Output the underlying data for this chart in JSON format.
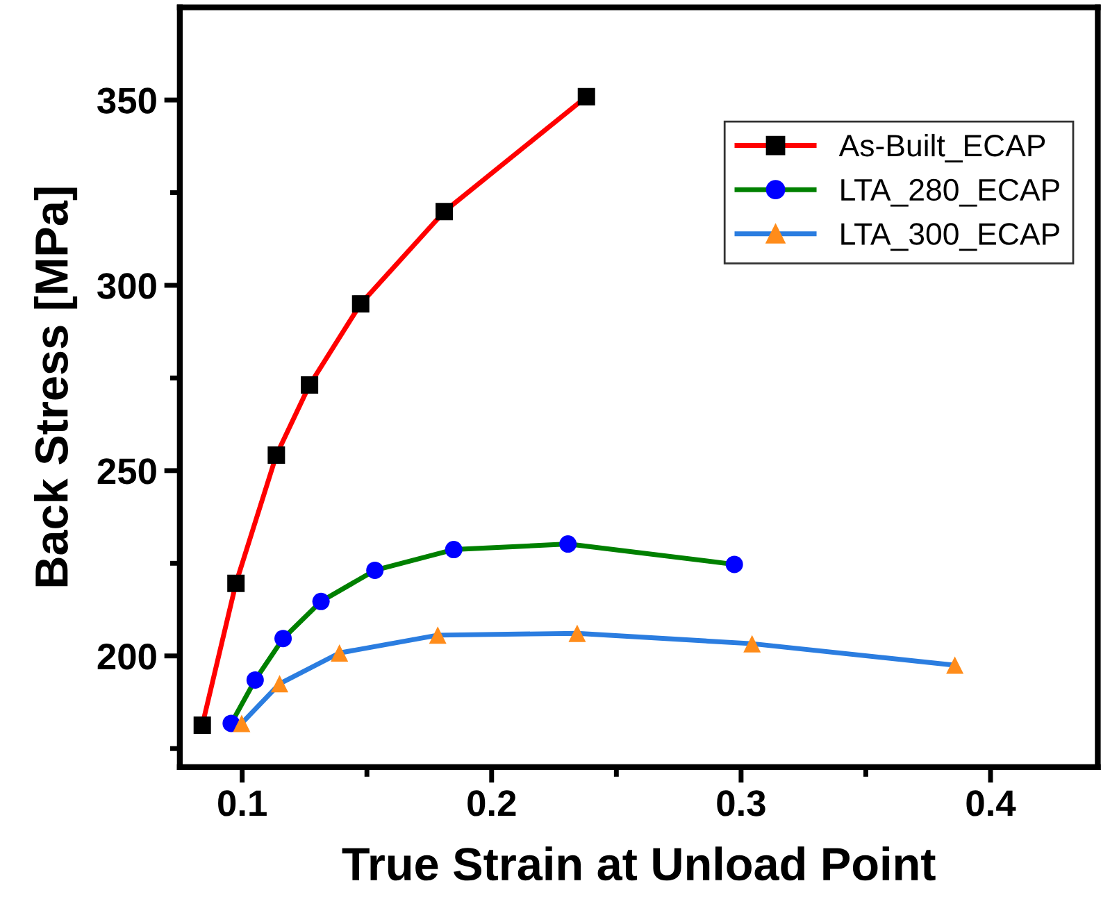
{
  "chart_data": {
    "type": "line",
    "xlabel": "True Strain at Unload Point",
    "ylabel": "Back Stress [MPa]",
    "xlim": [
      0.075,
      0.443
    ],
    "ylim": [
      170,
      375
    ],
    "xticks": [
      0.1,
      {
        "value": 0.15,
        "label": null
      },
      0.2,
      {
        "value": 0.25,
        "label": null
      },
      0.3,
      {
        "value": 0.35,
        "label": null
      },
      0.4
    ],
    "yticks": [
      {
        "value": 175,
        "label": null
      },
      200,
      {
        "value": 225,
        "label": null
      },
      250,
      {
        "value": 275,
        "label": null
      },
      300,
      {
        "value": 325,
        "label": null
      },
      350
    ],
    "grid": false,
    "legend": "top right",
    "line_style": "solid",
    "series": [
      {
        "name": "As-Built_ECAP",
        "color": "#ff0000",
        "colors": [
          "#000000",
          "#000000",
          "#000000",
          "#000000",
          "#000000",
          "#000000",
          "#000000"
        ],
        "marker": "square",
        "x": [
          0.084,
          0.0975,
          0.1137,
          0.127,
          0.1475,
          0.181,
          0.238
        ],
        "values": [
          181.3,
          219.6,
          254.2,
          273.1,
          295.0,
          319.9,
          350.9
        ]
      },
      {
        "name": "LTA_280_ECAP",
        "color": "#008000",
        "colors": [
          "#0000ff",
          "#0000ff",
          "#0000ff",
          "#0000ff",
          "#0000ff",
          "#0000ff",
          "#0000ff",
          "#0000ff"
        ],
        "marker": "circle",
        "x": [
          0.0956,
          0.1052,
          0.1164,
          0.1316,
          0.1532,
          0.1848,
          0.2306,
          0.2973
        ],
        "values": [
          181.8,
          193.5,
          204.7,
          214.7,
          223.1,
          228.7,
          230.2,
          224.7
        ]
      },
      {
        "name": "LTA_300_ECAP",
        "color": "#2b7de0",
        "colors": [
          "#ff8c1a",
          "#ff8c1a",
          "#ff8c1a",
          "#ff8c1a",
          "#ff8c1a",
          "#ff8c1a",
          "#ff8c1a"
        ],
        "marker": "triangle",
        "x": [
          0.0998,
          0.115,
          0.139,
          0.1784,
          0.2343,
          0.3044,
          0.3857
        ],
        "values": [
          181.8,
          192.5,
          200.8,
          205.6,
          206.1,
          203.3,
          197.5
        ]
      }
    ]
  }
}
